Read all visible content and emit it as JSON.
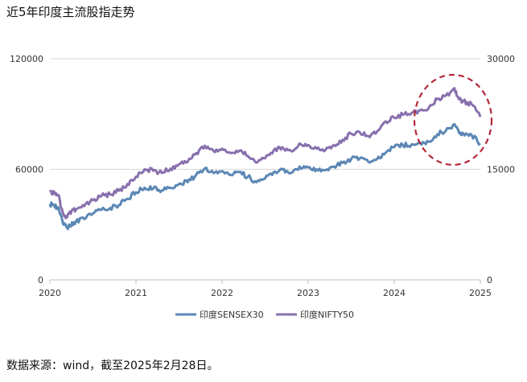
{
  "title": "近5年印度主流股指走势",
  "source": "数据来源：wind，截至2025年2月28日。",
  "colors": {
    "sensex": "#5b87b5",
    "nifty": "#8870ad",
    "circle": "#b4283a",
    "grid": "#d9d9d9"
  },
  "chart_data": {
    "type": "line",
    "x_ticks": [
      "2020",
      "2021",
      "2022",
      "2023",
      "2024",
      "2025"
    ],
    "y_left_ticks": [
      "0",
      "60000",
      "120000"
    ],
    "y_right_ticks": [
      "0",
      "15000",
      "30000"
    ],
    "ylim_left": [
      0,
      120000
    ],
    "ylim_right": [
      0,
      30000
    ],
    "xlim": [
      2020.0,
      2025.0
    ],
    "grid": "horizontal",
    "legend_position": "bottom",
    "annotation": "dashed red circle around late-2024 peak",
    "series": [
      {
        "name": "印度SENSEX30",
        "axis": "left",
        "x": [
          2020.0,
          2020.05,
          2020.1,
          2020.15,
          2020.2,
          2020.25,
          2020.3,
          2020.4,
          2020.5,
          2020.6,
          2020.7,
          2020.8,
          2020.9,
          2021.0,
          2021.1,
          2021.2,
          2021.3,
          2021.4,
          2021.5,
          2021.6,
          2021.7,
          2021.8,
          2021.9,
          2022.0,
          2022.1,
          2022.2,
          2022.3,
          2022.4,
          2022.5,
          2022.6,
          2022.7,
          2022.8,
          2022.9,
          2023.0,
          2023.1,
          2023.2,
          2023.3,
          2023.4,
          2023.5,
          2023.6,
          2023.7,
          2023.8,
          2023.9,
          2024.0,
          2024.1,
          2024.2,
          2024.3,
          2024.4,
          2024.5,
          2024.6,
          2024.7,
          2024.75,
          2024.8,
          2024.9,
          2025.0
        ],
        "values": [
          41000,
          40500,
          39000,
          31000,
          28500,
          30000,
          31500,
          33000,
          36000,
          38000,
          39000,
          40500,
          44000,
          47500,
          50000,
          49500,
          48500,
          50000,
          52000,
          53000,
          57000,
          60500,
          58000,
          59000,
          57000,
          58500,
          56000,
          53000,
          55000,
          58500,
          60000,
          58000,
          61500,
          61000,
          60000,
          59500,
          61500,
          63500,
          65500,
          66000,
          64000,
          65500,
          69000,
          72000,
          73000,
          73500,
          74500,
          75000,
          79000,
          81000,
          84500,
          80000,
          79500,
          78500,
          74000
        ]
      },
      {
        "name": "印度NIFTY50",
        "axis": "right",
        "x": [
          2020.0,
          2020.05,
          2020.1,
          2020.15,
          2020.2,
          2020.25,
          2020.3,
          2020.4,
          2020.5,
          2020.6,
          2020.7,
          2020.8,
          2020.9,
          2021.0,
          2021.1,
          2021.2,
          2021.3,
          2021.4,
          2021.5,
          2021.6,
          2021.7,
          2021.8,
          2021.9,
          2022.0,
          2022.1,
          2022.2,
          2022.3,
          2022.4,
          2022.5,
          2022.6,
          2022.7,
          2022.8,
          2022.9,
          2023.0,
          2023.1,
          2023.2,
          2023.3,
          2023.4,
          2023.5,
          2023.6,
          2023.7,
          2023.8,
          2023.9,
          2024.0,
          2024.1,
          2024.2,
          2024.3,
          2024.4,
          2024.5,
          2024.6,
          2024.7,
          2024.75,
          2024.8,
          2024.9,
          2025.0
        ],
        "values": [
          12000,
          11800,
          11500,
          9000,
          8500,
          9300,
          9500,
          10000,
          10800,
          11400,
          11600,
          12100,
          13000,
          14000,
          15000,
          14800,
          14500,
          15100,
          15700,
          16000,
          17200,
          18200,
          17500,
          17800,
          17200,
          17500,
          16800,
          15900,
          16500,
          17600,
          18000,
          17500,
          18500,
          18300,
          17800,
          17600,
          18300,
          19000,
          19800,
          20000,
          19500,
          20100,
          21500,
          22000,
          22400,
          22600,
          23000,
          23300,
          24500,
          25000,
          26000,
          24500,
          24200,
          23800,
          22100
        ]
      }
    ]
  }
}
